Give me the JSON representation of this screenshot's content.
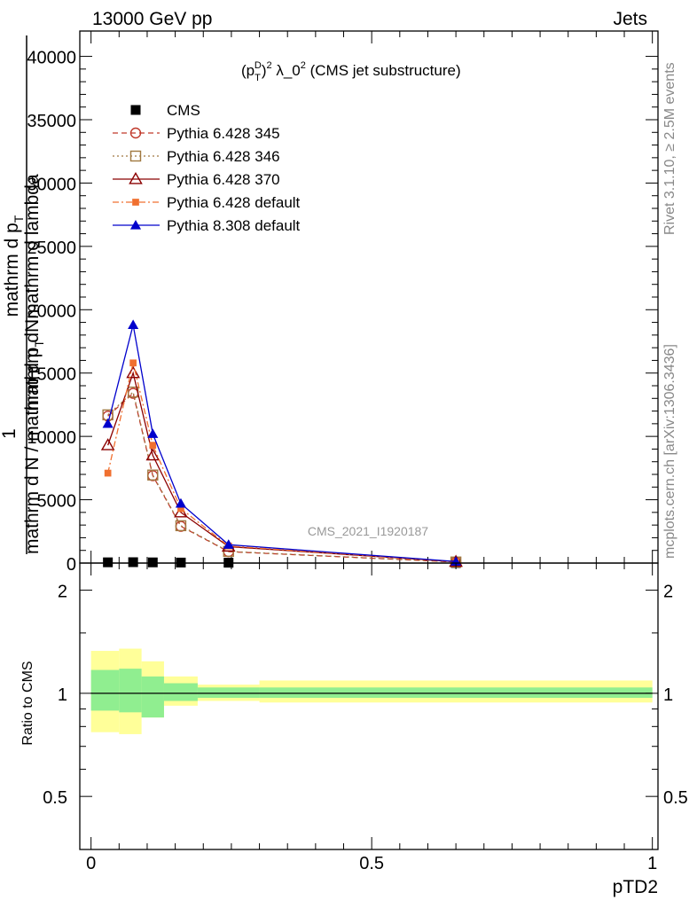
{
  "header": {
    "left": "13000 GeV pp",
    "right": "Jets"
  },
  "side_labels": {
    "rivet": "Rivet 3.1.10, ≥ 2.5M events",
    "mcplots": "mcplots.cern.ch [arXiv:1306.3436]"
  },
  "watermark": "CMS_2021_I1920187",
  "upper_ylabel": {
    "numerator_top": "mathrm dNmathrm d lambda",
    "numerator_sub": "mathrm d p",
    "numerator_subT": "T",
    "denominator": "mathrm d N / mathrm d p",
    "denominator_subT": "T",
    "prefix": "1"
  },
  "ratio_ylabel": "Ratio to CMS",
  "xlabel": "pTD2",
  "chart_data": [
    {
      "type": "line",
      "title": "(p_T^D)^2 λ_0^2 (CMS jet substructure)",
      "title_parts": {
        "p": "(p",
        "sup1": "D",
        "sub1": "T",
        "close": ")",
        "sup2": "2",
        "mid": " λ_0",
        "sup3": "2",
        "rest": " (CMS jet substructure)"
      },
      "xlabel": "pTD2",
      "xlim": [
        -0.02,
        1.01
      ],
      "ylim": [
        0,
        42000
      ],
      "yticks": [
        0,
        5000,
        10000,
        15000,
        20000,
        25000,
        30000,
        35000,
        40000
      ],
      "ytick_labels": [
        "0",
        "5000",
        "10000",
        "15000",
        "20000",
        "25000",
        "30000",
        "35000",
        "40000"
      ],
      "legend_position": "top-left",
      "series": [
        {
          "name": "CMS",
          "color": "#000000",
          "marker": "filled-square",
          "line": "none",
          "x": [
            0.03,
            0.075,
            0.11,
            0.16,
            0.245,
            0.65
          ],
          "y": [
            60,
            70,
            55,
            40,
            30,
            5
          ]
        },
        {
          "name": "Pythia 6.428 345",
          "color": "#c0392b",
          "marker": "open-circle",
          "line": "dashed",
          "x": [
            0.03,
            0.075,
            0.11,
            0.16,
            0.245,
            0.65
          ],
          "y": [
            11600,
            13400,
            6900,
            2900,
            900,
            80
          ]
        },
        {
          "name": "Pythia 6.428 346",
          "color": "#a07840",
          "marker": "open-square",
          "line": "dotted",
          "x": [
            0.03,
            0.075,
            0.11,
            0.16,
            0.245,
            0.65
          ],
          "y": [
            11700,
            13500,
            6950,
            2950,
            920,
            85
          ]
        },
        {
          "name": "Pythia 6.428 370",
          "color": "#8b0000",
          "marker": "open-triangle",
          "line": "solid",
          "x": [
            0.03,
            0.075,
            0.11,
            0.16,
            0.245,
            0.65
          ],
          "y": [
            9300,
            15000,
            8500,
            4000,
            1300,
            100
          ]
        },
        {
          "name": "Pythia 6.428 default",
          "color": "#f07030",
          "marker": "filled-small-square",
          "line": "dashdot",
          "x": [
            0.03,
            0.075,
            0.11,
            0.16,
            0.245,
            0.65
          ],
          "y": [
            7100,
            15800,
            9300,
            4300,
            1350,
            110
          ]
        },
        {
          "name": "Pythia 8.308 default",
          "color": "#0000cc",
          "marker": "filled-triangle",
          "line": "solid",
          "x": [
            0.03,
            0.075,
            0.11,
            0.16,
            0.245,
            0.65
          ],
          "y": [
            11000,
            18800,
            10200,
            4700,
            1450,
            120
          ]
        }
      ]
    },
    {
      "type": "area",
      "ylabel": "Ratio to CMS",
      "xlabel": "pTD2",
      "xlim": [
        -0.02,
        1.01
      ],
      "ylim": [
        0.35,
        2.4
      ],
      "ylog": true,
      "yticks": [
        0.5,
        1,
        2
      ],
      "ytick_labels": [
        "0.5",
        "1",
        "2"
      ],
      "xticks": [
        0,
        0.5,
        1
      ],
      "xtick_labels": [
        "0",
        "0.5",
        "1"
      ],
      "bins": [
        {
          "xlo": 0.0,
          "xhi": 0.05,
          "inner": [
            0.89,
            1.17
          ],
          "outer": [
            0.77,
            1.33
          ]
        },
        {
          "xlo": 0.05,
          "xhi": 0.09,
          "inner": [
            0.88,
            1.18
          ],
          "outer": [
            0.76,
            1.35
          ]
        },
        {
          "xlo": 0.09,
          "xhi": 0.13,
          "inner": [
            0.85,
            1.12
          ],
          "outer": [
            0.85,
            1.24
          ]
        },
        {
          "xlo": 0.13,
          "xhi": 0.19,
          "inner": [
            0.95,
            1.07
          ],
          "outer": [
            0.92,
            1.12
          ]
        },
        {
          "xlo": 0.19,
          "xhi": 0.3,
          "inner": [
            0.97,
            1.04
          ],
          "outer": [
            0.95,
            1.06
          ]
        },
        {
          "xlo": 0.3,
          "xhi": 1.0,
          "inner": [
            0.97,
            1.04
          ],
          "outer": [
            0.94,
            1.09
          ]
        }
      ],
      "band_colors": {
        "inner": "#90ee90",
        "outer": "#ffff99"
      }
    }
  ]
}
